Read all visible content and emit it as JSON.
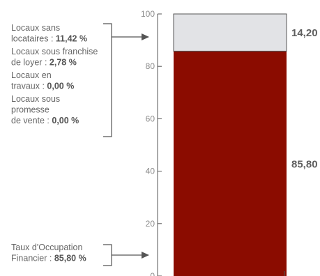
{
  "chart_data": {
    "type": "bar",
    "orientation": "vertical-stacked",
    "ylim": [
      0,
      100
    ],
    "yticks": [
      "100",
      "80",
      "60",
      "40",
      "20",
      "0"
    ],
    "series": [
      {
        "value": 85.8,
        "label": "85,80 %",
        "color": "#8b0c00"
      },
      {
        "value": 14.2,
        "label": "14,20 %",
        "color": "#e2e3e6"
      }
    ],
    "annotations": {
      "top_group": [
        {
          "lines": [
            "Locaux sans"
          ],
          "last_prefix": "locataires : ",
          "value": "11,42 %"
        },
        {
          "lines": [
            "Locaux sous franchise"
          ],
          "last_prefix": "de loyer : ",
          "value": "2,78 %"
        },
        {
          "lines": [
            "Locaux en"
          ],
          "last_prefix": "travaux : ",
          "value": "0,00 %"
        },
        {
          "lines": [
            "Locaux sous",
            "promesse"
          ],
          "last_prefix": "de vente : ",
          "value": "0,00 %"
        }
      ],
      "bottom_group": [
        {
          "lines": [
            "Taux d'Occupation"
          ],
          "last_prefix": "Financier : ",
          "value": "85,80 %"
        }
      ]
    }
  }
}
